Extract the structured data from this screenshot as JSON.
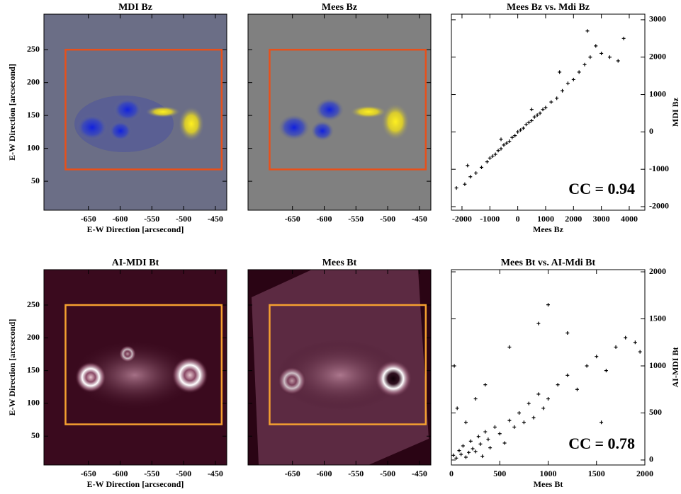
{
  "chart_data": [
    {
      "type": "image",
      "title": "MDI Bz",
      "xlabel": "E-W Direction [arcsecond]",
      "ylabel": "E-W Direction [arcsecond]",
      "xlim": [
        -720,
        -432
      ],
      "ylim": [
        6,
        304
      ],
      "xticks": [
        -650,
        -600,
        -550,
        -500,
        -450
      ],
      "yticks": [
        50,
        100,
        150,
        200,
        250
      ],
      "box": {
        "xlim": [
          -686,
          -440
        ],
        "ylim": [
          68,
          250
        ],
        "color": "#e8501a"
      }
    },
    {
      "type": "image",
      "title": "Mees Bz",
      "xlim": [
        -720,
        -432
      ],
      "ylim": [
        6,
        304
      ],
      "xticks": [
        -650,
        -600,
        -550,
        -500,
        -450
      ],
      "yticks": [
        50,
        100,
        150,
        200,
        250
      ],
      "box": {
        "xlim": [
          -686,
          -440
        ],
        "ylim": [
          68,
          250
        ],
        "color": "#e8501a"
      }
    },
    {
      "type": "scatter",
      "title": "Mees Bz vs. Mdi Bz",
      "xlabel": "Mees Bz",
      "ylabel": "MDI Bz",
      "annotation": "CC = 0.94",
      "xlim": [
        -2380,
        4560
      ],
      "ylim": [
        -2095,
        3150
      ],
      "xticks": [
        -2000,
        -1000,
        0,
        1000,
        2000,
        3000,
        4000
      ],
      "yticks": [
        -2000,
        -1000,
        0,
        1000,
        2000,
        3000
      ],
      "color": "#000000",
      "x": [
        -2200,
        -1900,
        -1700,
        -1500,
        -1300,
        -1100,
        -1000,
        -900,
        -800,
        -700,
        -600,
        -500,
        -400,
        -300,
        -200,
        -100,
        0,
        100,
        200,
        300,
        400,
        500,
        600,
        700,
        800,
        900,
        1000,
        1200,
        1400,
        1600,
        1800,
        2000,
        2200,
        2400,
        2600,
        2800,
        3000,
        3300,
        3600,
        3800,
        -1800,
        -600,
        500,
        1500,
        2500
      ],
      "y": [
        -1500,
        -1400,
        -1200,
        -1100,
        -950,
        -800,
        -700,
        -650,
        -600,
        -500,
        -450,
        -350,
        -300,
        -250,
        -150,
        -100,
        0,
        50,
        100,
        200,
        250,
        300,
        400,
        450,
        500,
        600,
        650,
        800,
        900,
        1100,
        1300,
        1400,
        1600,
        1800,
        2000,
        2300,
        2100,
        2000,
        1900,
        2500,
        -900,
        -200,
        600,
        1600,
        2700
      ]
    },
    {
      "type": "image",
      "title": "AI-MDI Bt",
      "xlabel": "E-W Direction [arcsecond]",
      "ylabel": "E-W Direction [arcsecond]",
      "xlim": [
        -720,
        -432
      ],
      "ylim": [
        6,
        304
      ],
      "xticks": [
        -650,
        -600,
        -550,
        -500,
        -450
      ],
      "yticks": [
        50,
        100,
        150,
        200,
        250
      ],
      "box": {
        "xlim": [
          -686,
          -440
        ],
        "ylim": [
          68,
          250
        ],
        "color": "#f5a030"
      }
    },
    {
      "type": "image",
      "title": "Mees Bt",
      "xlim": [
        -720,
        -432
      ],
      "ylim": [
        6,
        304
      ],
      "xticks": [
        -650,
        -600,
        -550,
        -500,
        -450
      ],
      "yticks": [
        50,
        100,
        150,
        200,
        250
      ],
      "box": {
        "xlim": [
          -686,
          -440
        ],
        "ylim": [
          68,
          250
        ],
        "color": "#f5a030"
      }
    },
    {
      "type": "scatter",
      "title": "Mees Bt vs. AI-Mdi Bt",
      "xlabel": "Mees Bt",
      "ylabel": "AI-MDI Bt",
      "annotation": "CC = 0.78",
      "xlim": [
        0,
        2000
      ],
      "ylim": [
        -53,
        2023
      ],
      "xticks": [
        0,
        500,
        1000,
        1500,
        2000
      ],
      "yticks": [
        0,
        500,
        1000,
        1500,
        2000
      ],
      "color": "#000000",
      "x": [
        20,
        50,
        80,
        100,
        120,
        150,
        180,
        200,
        220,
        250,
        280,
        300,
        320,
        350,
        380,
        400,
        450,
        500,
        550,
        600,
        650,
        700,
        750,
        800,
        850,
        900,
        950,
        1000,
        1100,
        1200,
        1300,
        1400,
        1500,
        1600,
        1700,
        1800,
        1900,
        1950,
        30,
        60,
        150,
        250,
        350,
        600,
        900,
        1000,
        1200,
        1550
      ],
      "y": [
        50,
        20,
        100,
        60,
        150,
        30,
        80,
        200,
        120,
        90,
        250,
        170,
        40,
        300,
        220,
        130,
        350,
        280,
        180,
        420,
        350,
        500,
        400,
        600,
        450,
        700,
        550,
        650,
        800,
        900,
        750,
        1000,
        1100,
        950,
        1200,
        1300,
        1250,
        1150,
        1000,
        550,
        400,
        650,
        800,
        1200,
        1450,
        1650,
        1350,
        400
      ]
    }
  ]
}
